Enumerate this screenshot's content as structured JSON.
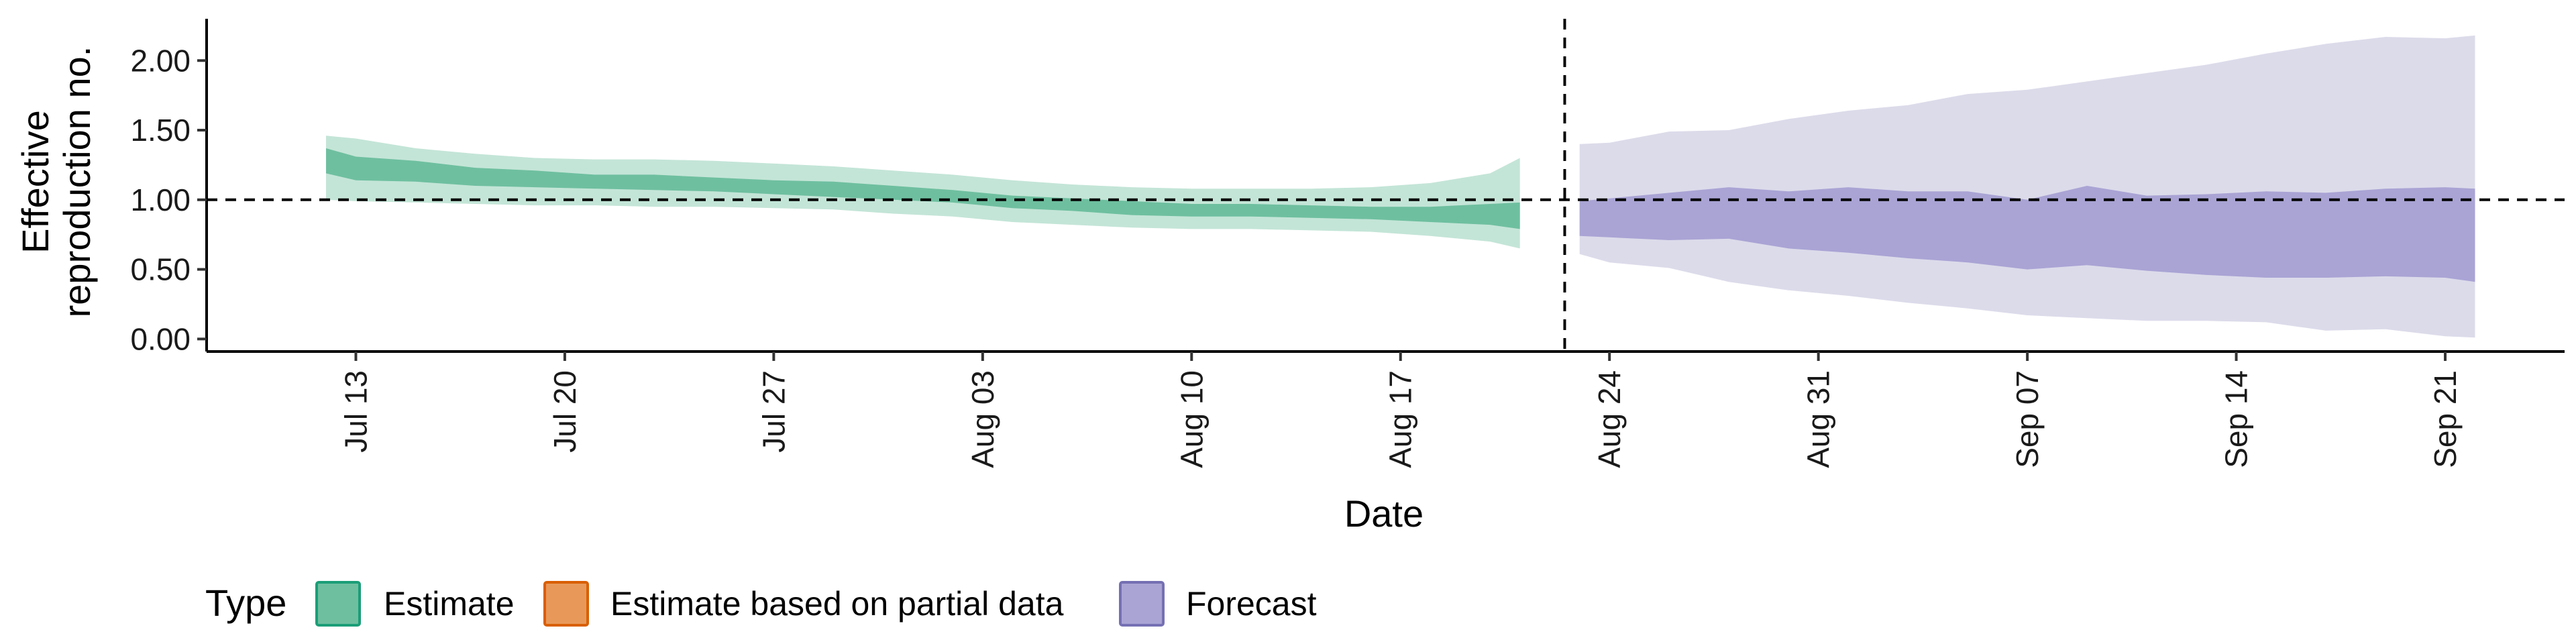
{
  "chart_data": {
    "type": "area",
    "title": "",
    "xlabel": "Date",
    "ylabel": [
      "Effective",
      "reproduction no."
    ],
    "x_ticks": [
      "Jul 13",
      "Jul 20",
      "Jul 27",
      "Aug 03",
      "Aug 10",
      "Aug 17",
      "Aug 24",
      "Aug 31",
      "Sep 07",
      "Sep 14",
      "Sep 21"
    ],
    "y_ticks": [
      "0.00",
      "0.50",
      "1.00",
      "1.50",
      "2.00"
    ],
    "xlim": [
      "2020-07-08",
      "2020-09-25"
    ],
    "ylim": [
      -0.09,
      2.3
    ],
    "reference_line_y": 1.0,
    "forecast_divider_x": "2020-08-22",
    "legend": {
      "title": "Type",
      "position": "bottom-left",
      "items": [
        {
          "label": "Estimate",
          "fill": "#6ebfa0",
          "stroke": "#1b9e77"
        },
        {
          "label": "Estimate based on partial data",
          "fill": "#e8995a",
          "stroke": "#d95f02"
        },
        {
          "label": "Forecast",
          "fill": "#a9a4d4",
          "stroke": "#7570b3"
        }
      ]
    },
    "series": [
      {
        "name": "Estimate",
        "outer_color": "#c3e5d7",
        "inner_color": "#6ebfa0",
        "points": [
          {
            "date": "2020-07-12",
            "lo90": 1.0,
            "lo50": 1.19,
            "hi50": 1.37,
            "hi90": 1.46
          },
          {
            "date": "2020-07-13",
            "lo90": 0.99,
            "lo50": 1.14,
            "hi50": 1.31,
            "hi90": 1.44
          },
          {
            "date": "2020-07-15",
            "lo90": 0.98,
            "lo50": 1.13,
            "hi50": 1.28,
            "hi90": 1.37
          },
          {
            "date": "2020-07-17",
            "lo90": 0.97,
            "lo50": 1.1,
            "hi50": 1.23,
            "hi90": 1.33
          },
          {
            "date": "2020-07-19",
            "lo90": 0.96,
            "lo50": 1.09,
            "hi50": 1.21,
            "hi90": 1.3
          },
          {
            "date": "2020-07-21",
            "lo90": 0.96,
            "lo50": 1.08,
            "hi50": 1.18,
            "hi90": 1.29
          },
          {
            "date": "2020-07-23",
            "lo90": 0.95,
            "lo50": 1.07,
            "hi50": 1.18,
            "hi90": 1.29
          },
          {
            "date": "2020-07-25",
            "lo90": 0.95,
            "lo50": 1.06,
            "hi50": 1.16,
            "hi90": 1.28
          },
          {
            "date": "2020-07-27",
            "lo90": 0.94,
            "lo50": 1.04,
            "hi50": 1.14,
            "hi90": 1.26
          },
          {
            "date": "2020-07-29",
            "lo90": 0.93,
            "lo50": 1.02,
            "hi50": 1.13,
            "hi90": 1.24
          },
          {
            "date": "2020-07-31",
            "lo90": 0.9,
            "lo50": 1.0,
            "hi50": 1.1,
            "hi90": 1.21
          },
          {
            "date": "2020-08-02",
            "lo90": 0.88,
            "lo50": 0.98,
            "hi50": 1.07,
            "hi90": 1.18
          },
          {
            "date": "2020-08-04",
            "lo90": 0.84,
            "lo50": 0.94,
            "hi50": 1.03,
            "hi90": 1.14
          },
          {
            "date": "2020-08-06",
            "lo90": 0.82,
            "lo50": 0.92,
            "hi50": 1.01,
            "hi90": 1.11
          },
          {
            "date": "2020-08-08",
            "lo90": 0.8,
            "lo50": 0.89,
            "hi50": 0.99,
            "hi90": 1.09
          },
          {
            "date": "2020-08-10",
            "lo90": 0.79,
            "lo50": 0.88,
            "hi50": 0.97,
            "hi90": 1.08
          },
          {
            "date": "2020-08-12",
            "lo90": 0.79,
            "lo50": 0.88,
            "hi50": 0.97,
            "hi90": 1.08
          },
          {
            "date": "2020-08-14",
            "lo90": 0.78,
            "lo50": 0.87,
            "hi50": 0.96,
            "hi90": 1.08
          },
          {
            "date": "2020-08-16",
            "lo90": 0.77,
            "lo50": 0.86,
            "hi50": 0.95,
            "hi90": 1.09
          },
          {
            "date": "2020-08-18",
            "lo90": 0.74,
            "lo50": 0.84,
            "hi50": 0.95,
            "hi90": 1.12
          },
          {
            "date": "2020-08-20",
            "lo90": 0.7,
            "lo50": 0.82,
            "hi50": 0.97,
            "hi90": 1.19
          },
          {
            "date": "2020-08-21",
            "lo90": 0.65,
            "lo50": 0.79,
            "hi50": 0.98,
            "hi90": 1.3
          }
        ]
      },
      {
        "name": "Forecast",
        "outer_color": "#dcdbea",
        "inner_color": "#a9a4d4",
        "points": [
          {
            "date": "2020-08-23",
            "lo90": 0.61,
            "lo50": 0.74,
            "hi50": 0.99,
            "hi90": 1.4
          },
          {
            "date": "2020-08-24",
            "lo90": 0.55,
            "lo50": 0.73,
            "hi50": 1.01,
            "hi90": 1.41
          },
          {
            "date": "2020-08-26",
            "lo90": 0.51,
            "lo50": 0.71,
            "hi50": 1.05,
            "hi90": 1.49
          },
          {
            "date": "2020-08-28",
            "lo90": 0.41,
            "lo50": 0.72,
            "hi50": 1.09,
            "hi90": 1.5
          },
          {
            "date": "2020-08-30",
            "lo90": 0.35,
            "lo50": 0.65,
            "hi50": 1.06,
            "hi90": 1.58
          },
          {
            "date": "2020-09-01",
            "lo90": 0.31,
            "lo50": 0.62,
            "hi50": 1.09,
            "hi90": 1.64
          },
          {
            "date": "2020-09-03",
            "lo90": 0.26,
            "lo50": 0.58,
            "hi50": 1.06,
            "hi90": 1.68
          },
          {
            "date": "2020-09-05",
            "lo90": 0.22,
            "lo50": 0.55,
            "hi50": 1.06,
            "hi90": 1.76
          },
          {
            "date": "2020-09-07",
            "lo90": 0.17,
            "lo50": 0.5,
            "hi50": 1.0,
            "hi90": 1.79
          },
          {
            "date": "2020-09-09",
            "lo90": 0.15,
            "lo50": 0.53,
            "hi50": 1.1,
            "hi90": 1.85
          },
          {
            "date": "2020-09-11",
            "lo90": 0.13,
            "lo50": 0.49,
            "hi50": 1.03,
            "hi90": 1.91
          },
          {
            "date": "2020-09-13",
            "lo90": 0.13,
            "lo50": 0.46,
            "hi50": 1.04,
            "hi90": 1.97
          },
          {
            "date": "2020-09-15",
            "lo90": 0.12,
            "lo50": 0.44,
            "hi50": 1.06,
            "hi90": 2.05
          },
          {
            "date": "2020-09-17",
            "lo90": 0.06,
            "lo50": 0.44,
            "hi50": 1.05,
            "hi90": 2.12
          },
          {
            "date": "2020-09-19",
            "lo90": 0.07,
            "lo50": 0.45,
            "hi50": 1.08,
            "hi90": 2.17
          },
          {
            "date": "2020-09-21",
            "lo90": 0.02,
            "lo50": 0.44,
            "hi50": 1.09,
            "hi90": 2.16
          },
          {
            "date": "2020-09-22",
            "lo90": 0.01,
            "lo50": 0.41,
            "hi50": 1.08,
            "hi90": 2.18
          }
        ]
      }
    ]
  }
}
